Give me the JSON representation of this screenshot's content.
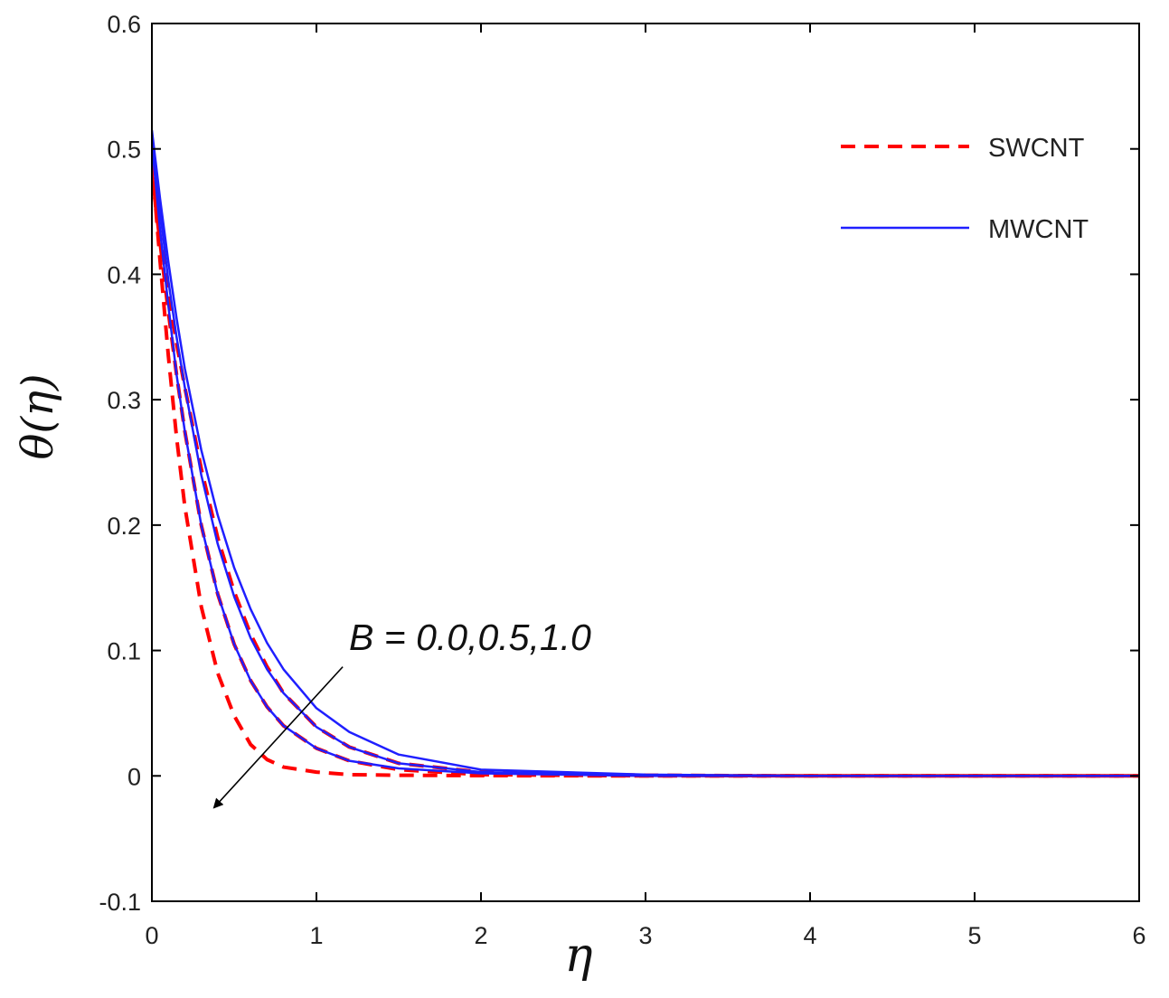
{
  "chart_data": {
    "type": "line",
    "xlabel": "η",
    "ylabel": "θ(η)",
    "xlim": [
      0,
      6
    ],
    "ylim": [
      -0.1,
      0.6
    ],
    "xticks": [
      "0",
      "1",
      "2",
      "3",
      "4",
      "5",
      "6"
    ],
    "yticks": [
      "-0.1",
      "0",
      "0.1",
      "0.2",
      "0.3",
      "0.4",
      "0.5",
      "0.6"
    ],
    "grid": false,
    "legend": {
      "placement": "top-right",
      "entries": [
        {
          "label": "SWCNT",
          "color": "#ff0000",
          "style": "dashed"
        },
        {
          "label": "MWCNT",
          "color": "#1f1fff",
          "style": "solid"
        }
      ]
    },
    "annotation": {
      "text": "B = 0.0,0.5,1.0",
      "arrow_from": [
        1.16,
        0.087
      ],
      "arrow_to": [
        0.38,
        -0.025
      ]
    },
    "series": [
      {
        "group": "SWCNT",
        "style": "dashed",
        "color": "#ff0000",
        "x": [
          0,
          0.05,
          0.1,
          0.15,
          0.2,
          0.3,
          0.4,
          0.5,
          0.6,
          0.7,
          0.8,
          1.0,
          1.2,
          1.5,
          2.0,
          3.0,
          4.0,
          5.0,
          6.0
        ],
        "y": [
          0.49,
          0.41,
          0.335,
          0.27,
          0.215,
          0.135,
          0.082,
          0.048,
          0.025,
          0.013,
          0.007,
          0.003,
          0.001,
          0.0005,
          0.0002,
          0.0,
          0.0,
          0.0,
          0.0
        ]
      },
      {
        "group": "SWCNT",
        "style": "dashed",
        "color": "#ff0000",
        "x": [
          0,
          0.05,
          0.1,
          0.15,
          0.2,
          0.3,
          0.4,
          0.5,
          0.6,
          0.7,
          0.8,
          1.0,
          1.2,
          1.5,
          2.0,
          3.0,
          4.0,
          5.0,
          6.0
        ],
        "y": [
          0.48,
          0.425,
          0.37,
          0.32,
          0.275,
          0.2,
          0.145,
          0.105,
          0.076,
          0.055,
          0.04,
          0.022,
          0.012,
          0.005,
          0.001,
          0.0,
          0.0,
          0.0,
          0.0
        ]
      },
      {
        "group": "SWCNT",
        "style": "dashed",
        "color": "#ff0000",
        "x": [
          0,
          0.05,
          0.1,
          0.15,
          0.2,
          0.3,
          0.4,
          0.5,
          0.6,
          0.7,
          0.8,
          1.0,
          1.2,
          1.5,
          2.0,
          3.0,
          4.0,
          5.0,
          6.0
        ],
        "y": [
          0.475,
          0.43,
          0.385,
          0.345,
          0.31,
          0.245,
          0.19,
          0.147,
          0.113,
          0.087,
          0.066,
          0.039,
          0.023,
          0.01,
          0.003,
          0.0005,
          0.0,
          0.0,
          0.0
        ]
      },
      {
        "group": "MWCNT",
        "style": "solid",
        "color": "#1f1fff",
        "x": [
          0,
          0.05,
          0.1,
          0.15,
          0.2,
          0.3,
          0.4,
          0.5,
          0.6,
          0.7,
          0.8,
          1.0,
          1.2,
          1.5,
          2.0,
          3.0,
          4.0,
          5.0,
          6.0
        ],
        "y": [
          0.505,
          0.435,
          0.375,
          0.32,
          0.275,
          0.2,
          0.145,
          0.105,
          0.076,
          0.055,
          0.04,
          0.022,
          0.012,
          0.006,
          0.002,
          0.0,
          0.0,
          0.0,
          0.0
        ]
      },
      {
        "group": "MWCNT",
        "style": "solid",
        "color": "#1f1fff",
        "x": [
          0,
          0.05,
          0.1,
          0.15,
          0.2,
          0.3,
          0.4,
          0.5,
          0.6,
          0.7,
          0.8,
          1.0,
          1.2,
          1.5,
          2.0,
          3.0,
          4.0,
          5.0,
          6.0
        ],
        "y": [
          0.51,
          0.45,
          0.395,
          0.35,
          0.31,
          0.24,
          0.185,
          0.143,
          0.11,
          0.085,
          0.066,
          0.039,
          0.023,
          0.01,
          0.003,
          0.0005,
          0.0,
          0.0,
          0.0
        ]
      },
      {
        "group": "MWCNT",
        "style": "solid",
        "color": "#1f1fff",
        "x": [
          0,
          0.05,
          0.1,
          0.15,
          0.2,
          0.3,
          0.4,
          0.5,
          0.6,
          0.7,
          0.8,
          1.0,
          1.2,
          1.5,
          2.0,
          3.0,
          4.0,
          5.0,
          6.0
        ],
        "y": [
          0.515,
          0.46,
          0.41,
          0.365,
          0.325,
          0.26,
          0.208,
          0.166,
          0.133,
          0.106,
          0.085,
          0.054,
          0.035,
          0.017,
          0.005,
          0.001,
          0.0,
          0.0,
          0.0
        ]
      }
    ]
  }
}
